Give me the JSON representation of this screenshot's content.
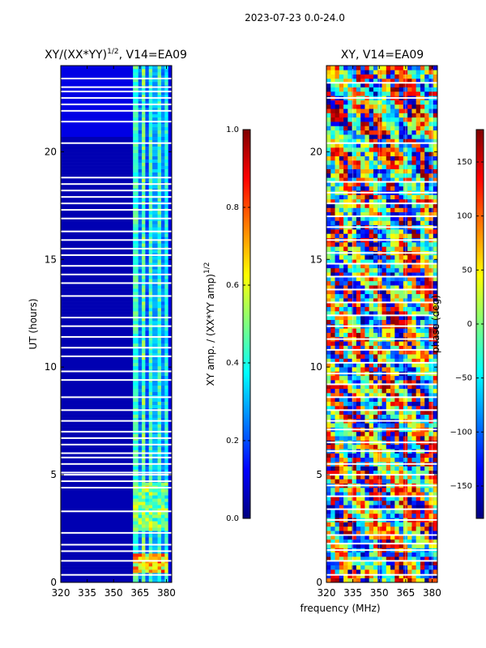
{
  "suptitle": "2023-07-23 0.0-24.0",
  "xlabel": "frequency (MHz)",
  "colors": {
    "jet": [
      "#00007f",
      "#0000ff",
      "#007fff",
      "#00ffff",
      "#7fff7f",
      "#ffff00",
      "#ff7f00",
      "#ff0000",
      "#7f0000"
    ],
    "white": "#ffffff",
    "frame": "#000000"
  },
  "chart_data": [
    {
      "type": "heatmap",
      "id": "amp",
      "title_main": "XY/(XX*YY)",
      "title_exp": "1/2",
      "title_rest": ", V14=EA09",
      "xlabel": "frequency (MHz)",
      "ylabel": "UT (hours)",
      "xlim": [
        320,
        383
      ],
      "ylim": [
        0,
        24
      ],
      "xticks": [
        320,
        335,
        350,
        365,
        380
      ],
      "yticks": [
        0,
        5,
        10,
        15,
        20
      ],
      "clim": [
        0.0,
        1.0
      ],
      "colorbar": {
        "label_main": "XY amp. / (XX*YY amp)",
        "label_exp": "1/2",
        "ticks": [
          "0.0",
          "0.2",
          "0.4",
          "0.6",
          "0.8",
          "1.0"
        ],
        "tick_values": [
          0.0,
          0.2,
          0.4,
          0.6,
          0.8,
          1.0
        ]
      },
      "bands": [
        {
          "from": 320,
          "to": 361,
          "level": 0.05
        },
        {
          "from": 361,
          "to": 364,
          "level": 0.45
        },
        {
          "from": 364,
          "to": 366,
          "level": 0.25
        },
        {
          "from": 366,
          "to": 368,
          "level": 0.5
        },
        {
          "from": 368,
          "to": 370,
          "level": 0.2
        },
        {
          "from": 370,
          "to": 372,
          "level": 0.45
        },
        {
          "from": 372,
          "to": 375,
          "level": 0.3
        },
        {
          "from": 375,
          "to": 377,
          "level": 0.45
        },
        {
          "from": 377,
          "to": 379,
          "level": 0.25
        },
        {
          "from": 379,
          "to": 381,
          "level": 0.4
        },
        {
          "from": 381,
          "to": 383,
          "level": 0.1
        }
      ],
      "features": [
        {
          "f_from": 361,
          "f_to": 381,
          "t_from": 0.4,
          "t_to": 1.3,
          "level": 0.75
        },
        {
          "f_from": 361,
          "f_to": 381,
          "t_from": 2.4,
          "t_to": 4.6,
          "level": 0.55
        },
        {
          "f_from": 320,
          "f_to": 345,
          "t_from": 16.9,
          "t_to": 17.3,
          "level": 0.3
        },
        {
          "f_from": 320,
          "f_to": 361,
          "t_from": 20.6,
          "t_to": 23.9,
          "level": 0.1
        }
      ],
      "gaps_ut": [
        0.35,
        1.0,
        1.45,
        1.75,
        2.3,
        3.3,
        4.4,
        4.7,
        5.0,
        5.1,
        5.5,
        5.8,
        6.0,
        6.4,
        6.7,
        7.0,
        7.5,
        8.0,
        8.6,
        9.4,
        9.8,
        10.5,
        10.9,
        11.4,
        11.9,
        12.3,
        13.3,
        13.9,
        14.3,
        14.7,
        15.2,
        15.5,
        15.9,
        16.3,
        16.9,
        17.3,
        17.6,
        17.9,
        18.2,
        18.5,
        18.8,
        20.4,
        21.4,
        21.9,
        22.2,
        22.5,
        22.8,
        23.0,
        23.4
      ]
    },
    {
      "type": "heatmap",
      "id": "phase",
      "title_main": "XY, V14=EA09",
      "xlabel": "frequency (MHz)",
      "ylabel": "",
      "xlim": [
        320,
        383
      ],
      "ylim": [
        0,
        24
      ],
      "xticks": [
        320,
        335,
        350,
        365,
        380
      ],
      "yticks": [
        0,
        5,
        10,
        15,
        20
      ],
      "clim": [
        -180,
        180
      ],
      "colorbar": {
        "label_main": "phase (deg)",
        "ticks": [
          "−150",
          "−100",
          "−50",
          "0",
          "50",
          "100",
          "150"
        ],
        "tick_values": [
          -150,
          -100,
          -50,
          0,
          50,
          100,
          150
        ]
      },
      "gaps_ut": [
        0.35,
        1.0,
        1.5,
        1.8,
        2.2,
        2.9,
        3.4,
        4.0,
        4.5,
        5.0,
        5.5,
        6.1,
        6.5,
        7.1,
        7.5,
        8.0,
        8.6,
        9.2,
        9.7,
        10.2,
        10.8,
        11.3,
        11.9,
        12.4,
        13.0,
        13.6,
        14.2,
        14.8,
        15.3,
        15.9,
        16.5,
        17.0,
        17.6,
        18.1,
        18.6,
        20.4,
        22.5,
        23.2
      ]
    }
  ]
}
